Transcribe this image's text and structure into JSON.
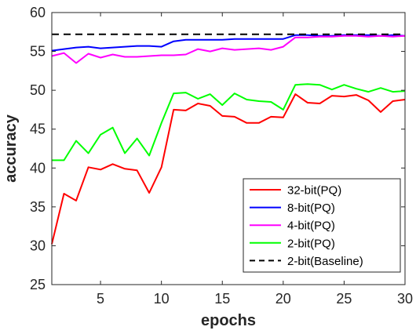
{
  "chart_data": {
    "type": "line",
    "title": "",
    "xlabel": "epochs",
    "ylabel": "accuracy",
    "xlim": [
      1,
      30
    ],
    "ylim": [
      25,
      60
    ],
    "xticks": [
      5,
      10,
      15,
      20,
      25,
      30
    ],
    "yticks": [
      25,
      30,
      35,
      40,
      45,
      50,
      55,
      60
    ],
    "grid": false,
    "legend_position": "bottom-right",
    "x": [
      1,
      2,
      3,
      4,
      5,
      6,
      7,
      8,
      9,
      10,
      11,
      12,
      13,
      14,
      15,
      16,
      17,
      18,
      19,
      20,
      21,
      22,
      23,
      24,
      25,
      26,
      27,
      28,
      29,
      30
    ],
    "series": [
      {
        "name": "32-bit(PQ)",
        "color": "#ff0000",
        "dash": "solid",
        "values": [
          30.2,
          36.7,
          35.8,
          40.1,
          39.8,
          40.5,
          39.9,
          39.7,
          36.8,
          40.1,
          47.5,
          47.4,
          48.3,
          48.0,
          46.7,
          46.6,
          45.8,
          45.8,
          46.6,
          46.5,
          49.5,
          48.4,
          48.3,
          49.3,
          49.2,
          49.4,
          48.7,
          47.2,
          48.6,
          48.8
        ]
      },
      {
        "name": "8-bit(PQ)",
        "color": "#0000ff",
        "dash": "solid",
        "values": [
          55.1,
          55.3,
          55.5,
          55.6,
          55.4,
          55.5,
          55.6,
          55.7,
          55.7,
          55.6,
          56.3,
          56.5,
          56.5,
          56.5,
          56.5,
          56.6,
          56.6,
          56.6,
          56.6,
          56.6,
          57.1,
          57.1,
          57.0,
          57.0,
          57.1,
          57.1,
          57.1,
          57.0,
          57.1,
          57.0
        ]
      },
      {
        "name": "4-bit(PQ)",
        "color": "#ff00ff",
        "dash": "solid",
        "values": [
          54.4,
          54.8,
          53.5,
          54.7,
          54.2,
          54.6,
          54.3,
          54.3,
          54.4,
          54.5,
          54.5,
          54.6,
          55.3,
          55.0,
          55.4,
          55.2,
          55.3,
          55.4,
          55.2,
          55.6,
          56.8,
          56.8,
          56.9,
          56.9,
          57.0,
          57.0,
          56.9,
          57.0,
          56.9,
          57.0
        ]
      },
      {
        "name": "2-bit(PQ)",
        "color": "#00ff00",
        "dash": "solid",
        "values": [
          41.0,
          41.0,
          43.5,
          41.9,
          44.3,
          45.2,
          41.9,
          43.8,
          41.6,
          45.8,
          49.6,
          49.7,
          48.9,
          49.5,
          48.1,
          49.6,
          48.8,
          48.6,
          48.5,
          47.5,
          50.7,
          50.8,
          50.7,
          50.1,
          50.7,
          50.2,
          49.8,
          50.3,
          49.8,
          49.9
        ]
      },
      {
        "name": "2-bit(Baseline)",
        "color": "#000000",
        "dash": "dashed",
        "values": [
          57.2,
          57.2,
          57.2,
          57.2,
          57.2,
          57.2,
          57.2,
          57.2,
          57.2,
          57.2,
          57.2,
          57.2,
          57.2,
          57.2,
          57.2,
          57.2,
          57.2,
          57.2,
          57.2,
          57.2,
          57.2,
          57.2,
          57.2,
          57.2,
          57.2,
          57.2,
          57.2,
          57.2,
          57.2,
          57.2
        ]
      }
    ]
  }
}
